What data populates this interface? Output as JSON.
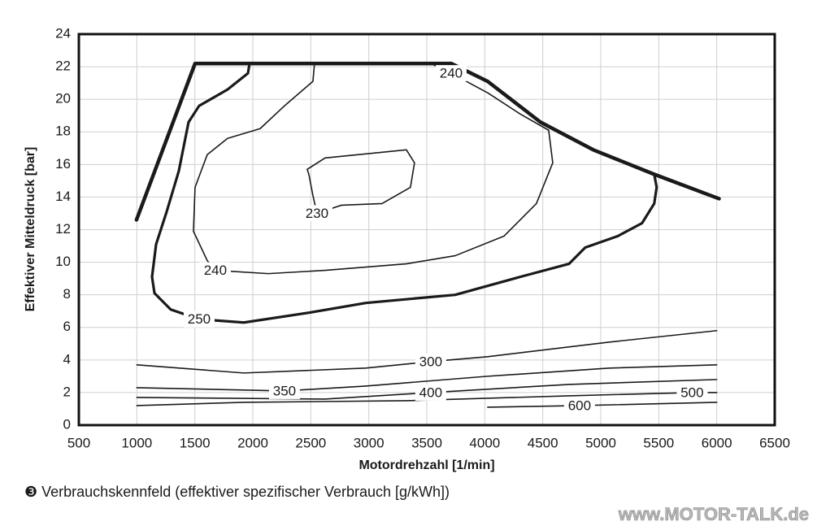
{
  "chart_data": {
    "type": "contour",
    "x_label": "Motordrehzahl [1/min]",
    "y_label": "Effektiver Mitteldruck [bar]",
    "caption": "❸ Verbrauchskennfeld (effektiver spezifischer Verbrauch [g/kWh])",
    "watermark": "www.MOTOR-TALK.de",
    "xlim": [
      500,
      6500
    ],
    "xticks": [
      500,
      1000,
      1500,
      2000,
      2500,
      3000,
      3500,
      4000,
      4500,
      5000,
      5500,
      6000,
      6500
    ],
    "ylim": [
      0,
      24
    ],
    "yticks": [
      0,
      2,
      4,
      6,
      8,
      10,
      12,
      14,
      16,
      18,
      20,
      22,
      24
    ],
    "grid": true,
    "color": "#1a1a1a",
    "series": [
      {
        "x": [
          997,
          1502,
          3710,
          4025,
          4480,
          4935,
          5460,
          6020
        ],
        "values": [
          12.6,
          22.2,
          22.2,
          21.1,
          18.6,
          16.9,
          15.4,
          13.9
        ]
      },
      {
        "name": "230",
        "x": [
          2469,
          2623,
          3044,
          3324,
          3394,
          3359,
          3114,
          2764,
          2553,
          2518,
          2483,
          2469
        ],
        "values": [
          15.7,
          16.4,
          16.7,
          16.9,
          16.1,
          14.6,
          13.6,
          13.5,
          13.0,
          14.1,
          15.4,
          15.7
        ]
      },
      {
        "name": "240",
        "x": [
          2532,
          2518,
          2273,
          2063,
          1782,
          1607,
          1502,
          1488,
          1607,
          1677,
          2133,
          2623,
          3324,
          3745,
          4165,
          4445,
          4586,
          4551,
          4305,
          4025,
          3710,
          3534
        ],
        "values": [
          22.2,
          21.1,
          19.6,
          18.2,
          17.6,
          16.6,
          14.6,
          11.9,
          10.1,
          9.5,
          9.3,
          9.5,
          9.9,
          10.4,
          11.6,
          13.6,
          16.1,
          18.1,
          19.1,
          20.4,
          21.6,
          22.2
        ]
      },
      {
        "name": "250",
        "x": [
          1972,
          1958,
          1782,
          1537,
          1446,
          1362,
          1257,
          1166,
          1131,
          1152,
          1292,
          1537,
          1923,
          2483,
          2974,
          3745,
          4305,
          4726,
          4866,
          5146,
          5356,
          5461,
          5482,
          5461
        ],
        "values": [
          22.2,
          21.6,
          20.6,
          19.6,
          18.6,
          15.6,
          13.1,
          11.1,
          9.1,
          8.1,
          7.1,
          6.5,
          6.3,
          6.9,
          7.5,
          8.0,
          9.1,
          9.9,
          10.9,
          11.6,
          12.4,
          13.6,
          14.6,
          15.4
        ]
      },
      {
        "name": "300",
        "x": [
          1000,
          1923,
          2974,
          3534,
          4025,
          5076,
          6000
        ],
        "values": [
          3.7,
          3.2,
          3.5,
          3.9,
          4.2,
          5.1,
          5.8
        ]
      },
      {
        "name": "350",
        "x": [
          1000,
          2273,
          2974,
          4025,
          5076,
          6000
        ],
        "values": [
          2.3,
          2.1,
          2.4,
          3.0,
          3.5,
          3.7
        ]
      },
      {
        "name": "400",
        "x": [
          1000,
          2623,
          3534,
          4726,
          6000
        ],
        "values": [
          1.7,
          1.6,
          2.0,
          2.5,
          2.8
        ]
      },
      {
        "name": "500",
        "x": [
          1000,
          1923,
          3324,
          4726,
          5788,
          6000
        ],
        "values": [
          1.2,
          1.4,
          1.5,
          1.8,
          2.0,
          2.0
        ]
      },
      {
        "name": "600",
        "x": [
          4025,
          4817,
          6000
        ],
        "values": [
          1.1,
          1.2,
          1.4
        ]
      }
    ]
  }
}
